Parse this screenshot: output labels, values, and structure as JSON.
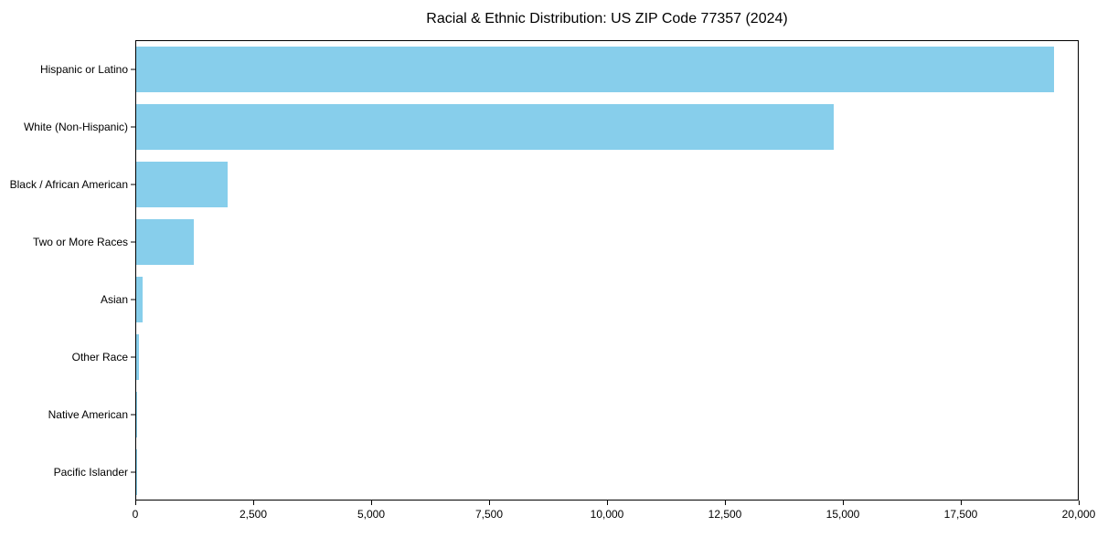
{
  "title": "Racial & Ethnic Distribution: US ZIP Code 77357 (2024)",
  "chart_data": {
    "type": "bar",
    "orientation": "horizontal",
    "title": "Racial & Ethnic Distribution: US ZIP Code 77357 (2024)",
    "categories": [
      "Hispanic or Latino",
      "White (Non-Hispanic)",
      "Black / African American",
      "Two or More Races",
      "Asian",
      "Other Race",
      "Native American",
      "Pacific Islander"
    ],
    "values": [
      19450,
      14780,
      1930,
      1220,
      140,
      50,
      15,
      5
    ],
    "xlabel": "",
    "ylabel": "",
    "xlim": [
      0,
      20000
    ],
    "xticks": [
      0,
      2500,
      5000,
      7500,
      10000,
      12500,
      15000,
      17500,
      20000
    ],
    "bar_color": "#87CEEB",
    "axis_color": "#000000",
    "grid": false,
    "legend_position": "none"
  }
}
